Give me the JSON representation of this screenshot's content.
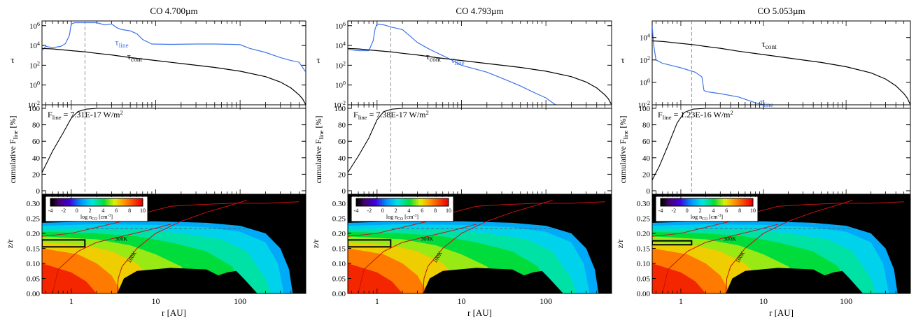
{
  "chart_data": [
    {
      "type": "line",
      "title": "CO 4.700µm",
      "xscale": "log",
      "xlim": [
        0.45,
        600
      ],
      "xlabel": "r [AU]",
      "xticks": [
        "1",
        "10",
        "100"
      ],
      "tau": {
        "ylabel": "τ",
        "yscale": "log",
        "ylim": [
          0.01,
          3000000
        ],
        "yticks": [
          "10-2",
          "100",
          "102",
          "104",
          "106"
        ],
        "series": [
          {
            "name": "τline",
            "color": "#3f74e8",
            "x": [
              0.45,
              0.5,
              0.6,
              0.75,
              0.85,
              0.95,
              1.0,
              1.1,
              1.5,
              2.0,
              2.5,
              3.0,
              3.5,
              4.0,
              5.0,
              6.0,
              7.0,
              9.0,
              15,
              30,
              50,
              80,
              100,
              130,
              200,
              300,
              400,
              500,
              600
            ],
            "y": [
              3000,
              8000,
              6000,
              8000,
              15000,
              100000,
              1500000,
              2000000,
              2000000,
              2000000,
              1200000,
              1500000,
              600000,
              400000,
              300000,
              150000,
              40000,
              14000,
              13000,
              14000,
              14000,
              13000,
              12000,
              5000,
              2000,
              600,
              300,
              200,
              20
            ]
          },
          {
            "name": "τcont",
            "color": "#000000",
            "x": [
              0.45,
              0.6,
              1.0,
              1.5,
              2,
              3,
              5,
              10,
              20,
              50,
              100,
              200,
              300,
              400,
              500,
              550,
              600
            ],
            "y": [
              5000,
              4500,
              3000,
              2200,
              1600,
              1100,
              600,
              300,
              150,
              60,
              25,
              7,
              2,
              0.5,
              0.1,
              0.04,
              0.01
            ]
          }
        ],
        "labels": [
          "τline",
          "τcont"
        ]
      },
      "flux": {
        "ylabel": "cumulative Fline [%]",
        "ylim": [
          0,
          100
        ],
        "yticks": [
          "0",
          "20",
          "40",
          "60",
          "80",
          "100"
        ],
        "label": "Fline = 7.31E-17 W/m2",
        "x": [
          0.45,
          0.6,
          0.8,
          1.0,
          1.2,
          1.5,
          2.0,
          3.0,
          5.0,
          10,
          100,
          600
        ],
        "y": [
          22,
          48,
          70,
          88,
          96,
          99,
          100,
          100,
          100,
          100,
          100,
          100
        ]
      },
      "map": {
        "ylabel": "z/r",
        "ylim": [
          0,
          0.33
        ],
        "yticks": [
          "0.00",
          "0.05",
          "0.10",
          "0.15",
          "0.20",
          "0.25",
          "0.30"
        ],
        "colorbar": {
          "label": "log nCO [cm-3]",
          "ticks": [
            "-4",
            "-2",
            "0",
            "2",
            "4",
            "6",
            "8",
            "10"
          ]
        },
        "contours": [
          "100K",
          "300K",
          "100K"
        ],
        "box": {
          "x": [
            0.45,
            1.45
          ],
          "y": [
            0.155,
            0.178
          ]
        }
      },
      "vline_r": 1.45
    },
    {
      "type": "line",
      "title": "CO 4.793µm",
      "xscale": "log",
      "xlim": [
        0.45,
        600
      ],
      "xlabel": "r [AU]",
      "xticks": [
        "1",
        "10",
        "100"
      ],
      "tau": {
        "ylabel": "τ",
        "yscale": "log",
        "ylim": [
          0.01,
          3000000
        ],
        "yticks": [
          "10-2",
          "100",
          "102",
          "104",
          "106"
        ],
        "series": [
          {
            "name": "τline",
            "color": "#3f74e8",
            "x": [
              0.45,
              0.6,
              0.8,
              0.9,
              0.95,
              1.0,
              1.2,
              1.5,
              2.0,
              2.5,
              3.0,
              4.0,
              5.0,
              7.0,
              10,
              20,
              30,
              50,
              70,
              100,
              130
            ],
            "y": [
              4000,
              3000,
              3000,
              30000,
              500000,
              1500000,
              1200000,
              700000,
              400000,
              80000,
              20000,
              5000,
              2000,
              500,
              100,
              20,
              5,
              0.8,
              0.2,
              0.05,
              0.01
            ]
          },
          {
            "name": "τcont",
            "color": "#000000",
            "x": [
              0.45,
              0.6,
              1.0,
              1.5,
              2,
              3,
              5,
              10,
              20,
              50,
              100,
              200,
              300,
              400,
              500,
              550,
              600
            ],
            "y": [
              5000,
              4500,
              3000,
              2200,
              1600,
              1100,
              600,
              300,
              150,
              60,
              25,
              7,
              2,
              0.5,
              0.1,
              0.04,
              0.01
            ]
          }
        ],
        "labels": [
          "τline",
          "τcont"
        ]
      },
      "flux": {
        "ylabel": "cumulative Fline [%]",
        "ylim": [
          0,
          100
        ],
        "yticks": [
          "0",
          "20",
          "40",
          "60",
          "80",
          "100"
        ],
        "label": "Fline = 7.38E-17 W/m2",
        "x": [
          0.45,
          0.6,
          0.8,
          1.0,
          1.2,
          1.5,
          2.0,
          3.0,
          5.0,
          10,
          100,
          600
        ],
        "y": [
          22,
          42,
          64,
          86,
          96,
          99,
          100,
          100,
          100,
          100,
          100,
          100
        ]
      },
      "map": {
        "ylabel": "z/r",
        "ylim": [
          0,
          0.33
        ],
        "yticks": [
          "0.00",
          "0.05",
          "0.10",
          "0.15",
          "0.20",
          "0.25",
          "0.30"
        ],
        "colorbar": {
          "label": "log nCO [cm-3]",
          "ticks": [
            "-4",
            "-2",
            "0",
            "2",
            "4",
            "6",
            "8",
            "10"
          ]
        },
        "contours": [
          "100K",
          "300K",
          "100K"
        ],
        "box": {
          "x": [
            0.45,
            1.45
          ],
          "y": [
            0.155,
            0.178
          ]
        }
      },
      "vline_r": 1.45
    },
    {
      "type": "line",
      "title": "CO 5.053µm",
      "xscale": "log",
      "xlim": [
        0.45,
        600
      ],
      "xlabel": "r [AU]",
      "xticks": [
        "1",
        "10",
        "100"
      ],
      "tau": {
        "ylabel": "τ",
        "yscale": "log",
        "ylim": [
          0.01,
          300000
        ],
        "yticks": [
          "10-2",
          "100",
          "102",
          "104"
        ],
        "series": [
          {
            "name": "τline",
            "color": "#3f74e8",
            "x": [
              0.45,
              0.47,
              0.5,
              0.55,
              0.6,
              0.8,
              1.0,
              1.5,
              1.8,
              1.9,
              2.0,
              3.0,
              5.0,
              8.0,
              10
            ],
            "y": [
              100000,
              2000,
              100,
              70,
              50,
              30,
              20,
              8,
              3,
              0.2,
              0.15,
              0.1,
              0.05,
              0.015,
              0.01
            ]
          },
          {
            "name": "τcont",
            "color": "#000000",
            "x": [
              0.45,
              0.6,
              1.0,
              1.5,
              2,
              3,
              5,
              10,
              20,
              50,
              100,
              200,
              300,
              400,
              500,
              550,
              600
            ],
            "y": [
              5000,
              4500,
              3000,
              2200,
              1600,
              1100,
              600,
              300,
              150,
              60,
              25,
              7,
              2,
              0.5,
              0.1,
              0.04,
              0.01
            ]
          }
        ],
        "labels": [
          "τline",
          "τcont"
        ]
      },
      "flux": {
        "ylabel": "cumulative Fline [%]",
        "ylim": [
          0,
          100
        ],
        "yticks": [
          "0",
          "20",
          "40",
          "60",
          "80",
          "100"
        ],
        "label": "Fline = 1.23E-16 W/m2",
        "x": [
          0.45,
          0.55,
          0.7,
          0.9,
          1.1,
          1.4,
          2.0,
          3.0,
          5.0,
          10,
          100,
          600
        ],
        "y": [
          13,
          30,
          55,
          82,
          95,
          99,
          100,
          100,
          100,
          100,
          100,
          100
        ]
      },
      "map": {
        "ylabel": "z/r",
        "ylim": [
          0,
          0.33
        ],
        "yticks": [
          "0.00",
          "0.05",
          "0.10",
          "0.15",
          "0.20",
          "0.25",
          "0.30"
        ],
        "colorbar": {
          "label": "log nCO [cm-3]",
          "ticks": [
            "-4",
            "-2",
            "0",
            "2",
            "4",
            "6",
            "8",
            "10"
          ]
        },
        "contours": [
          "100K",
          "300K",
          "100K"
        ],
        "box": {
          "x": [
            0.45,
            1.35
          ],
          "y": [
            0.162,
            0.175
          ]
        }
      },
      "vline_r": 1.35
    }
  ]
}
